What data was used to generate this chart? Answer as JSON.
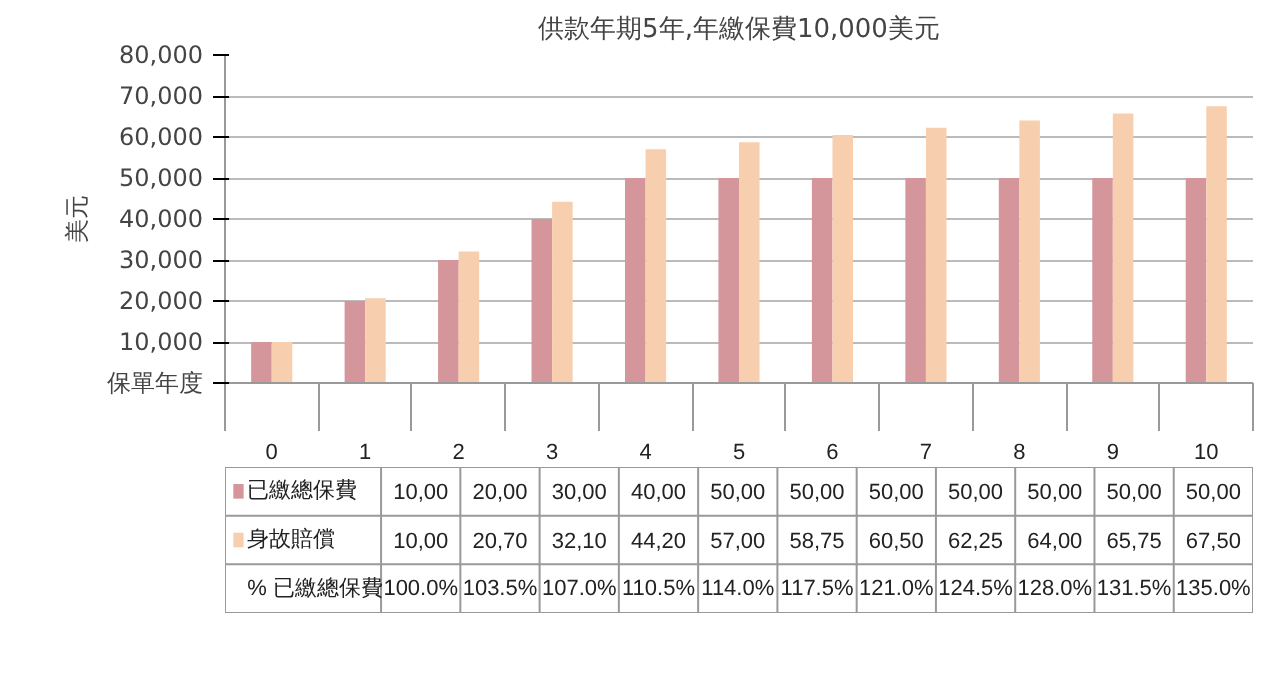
{
  "chart_data": {
    "type": "bar",
    "title": "供款年期5年,年繳保費10,000美元",
    "ylabel": "美元",
    "categories": [
      "0",
      "1",
      "2",
      "3",
      "4",
      "5",
      "6",
      "7",
      "8",
      "9",
      "10"
    ],
    "series": [
      {
        "name": "已繳總保費",
        "color": "#d4959b",
        "values": [
          10000,
          20000,
          30000,
          40000,
          50000,
          50000,
          50000,
          50000,
          50000,
          50000,
          50000
        ]
      },
      {
        "name": "身故賠償",
        "color": "#f8cfae",
        "values": [
          10000,
          20700,
          32100,
          44200,
          57000,
          58750,
          60500,
          62250,
          64000,
          65750,
          67500
        ]
      }
    ],
    "annotations": [
      "10,00",
      "20,00",
      "30,00",
      "40,00",
      "50,00",
      "50,00",
      "50,00",
      "50,00",
      "50,00",
      "50,00",
      "50,00",
      "10,00",
      "20,70",
      "32,10",
      "44,20",
      "57,00",
      "58,75",
      "60,50",
      "62,25",
      "64,00",
      "65,75",
      "67,50",
      "% 已繳總保費",
      "100.0%",
      "103.5%",
      "107.0%",
      "110.5%",
      "114.0%",
      "117.5%",
      "121.0%",
      "124.5%",
      "128.0%",
      "131.5%",
      "135.0%"
    ],
    "ylim": [
      0,
      80000
    ],
    "yticks": [
      {
        "value": 0,
        "label": "保單年度"
      },
      {
        "value": 10000,
        "label": "10,000"
      },
      {
        "value": 20000,
        "label": "20,000"
      },
      {
        "value": 30000,
        "label": "30,000"
      },
      {
        "value": 40000,
        "label": "40,000"
      },
      {
        "value": 50000,
        "label": "50,000"
      },
      {
        "value": 60000,
        "label": "60,000"
      },
      {
        "value": 70000,
        "label": "70,000"
      },
      {
        "value": 80000,
        "label": "80,000"
      }
    ],
    "grid": "y",
    "legend": "bottom left"
  }
}
